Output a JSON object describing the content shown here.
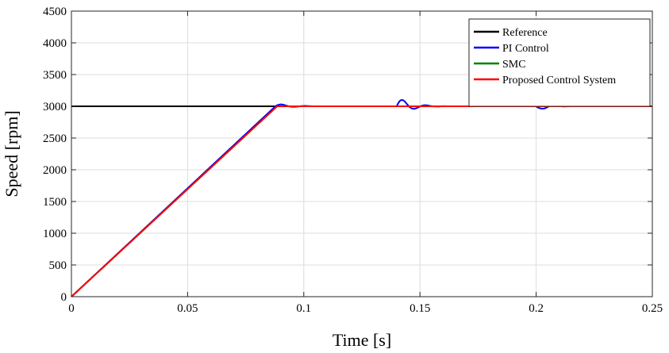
{
  "chart_data": {
    "type": "line",
    "title": "",
    "xlabel": "Time [s]",
    "ylabel": "Speed [rpm]",
    "xlim": [
      0,
      0.25
    ],
    "ylim": [
      0,
      4500
    ],
    "xticks": [
      0,
      0.05,
      0.1,
      0.15,
      0.2,
      0.25
    ],
    "xtick_labels": [
      "0",
      "0.05",
      "0.1",
      "0.15",
      "0.2",
      "0.25"
    ],
    "yticks": [
      0,
      500,
      1000,
      1500,
      2000,
      2500,
      3000,
      3500,
      4000,
      4500
    ],
    "ytick_labels": [
      "0",
      "500",
      "1000",
      "1500",
      "2000",
      "2500",
      "3000",
      "3500",
      "4000",
      "4500"
    ],
    "grid": true,
    "legend_position": "top-right",
    "series": [
      {
        "name": "Reference",
        "color": "#000000",
        "x": [
          0,
          0.25
        ],
        "y": [
          3000,
          3000
        ]
      },
      {
        "name": "PI Control",
        "color": "#0000ff",
        "x": [
          0,
          0.0878,
          0.0885,
          0.0893,
          0.09,
          0.0908,
          0.0918,
          0.093,
          0.0945,
          0.096,
          0.0975,
          0.099,
          0.1005,
          0.102,
          0.104,
          0.14,
          0.1405,
          0.1412,
          0.142,
          0.1428,
          0.1436,
          0.1445,
          0.1455,
          0.1465,
          0.1475,
          0.1485,
          0.1495,
          0.1505,
          0.1515,
          0.1525,
          0.1535,
          0.1545,
          0.156,
          0.158,
          0.16,
          0.162,
          0.2,
          0.2005,
          0.2015,
          0.2025,
          0.2035,
          0.2045,
          0.2055,
          0.2065,
          0.2075,
          0.2085,
          0.2095,
          0.2105,
          0.2115,
          0.213,
          0.215,
          0.25
        ],
        "y": [
          0,
          3000,
          3015,
          3025,
          3030,
          3028,
          3018,
          3005,
          2993,
          2992,
          2997,
          3003,
          3006,
          3003,
          3000,
          3000,
          3040,
          3080,
          3100,
          3095,
          3070,
          3030,
          2990,
          2965,
          2960,
          2970,
          2988,
          3005,
          3015,
          3018,
          3013,
          3005,
          2998,
          2997,
          3001,
          3000,
          3000,
          2985,
          2970,
          2962,
          2965,
          2980,
          3000,
          3015,
          3022,
          3020,
          3012,
          3003,
          2997,
          2998,
          3000,
          3000
        ]
      },
      {
        "name": "SMC",
        "color": "#008000",
        "x": [
          0,
          0.0885,
          0.25
        ],
        "y": [
          0,
          3000,
          3000
        ]
      },
      {
        "name": "Proposed Control System",
        "color": "#ff0000",
        "x": [
          0,
          0.0885,
          0.25
        ],
        "y": [
          0,
          3000,
          3000
        ]
      }
    ]
  }
}
